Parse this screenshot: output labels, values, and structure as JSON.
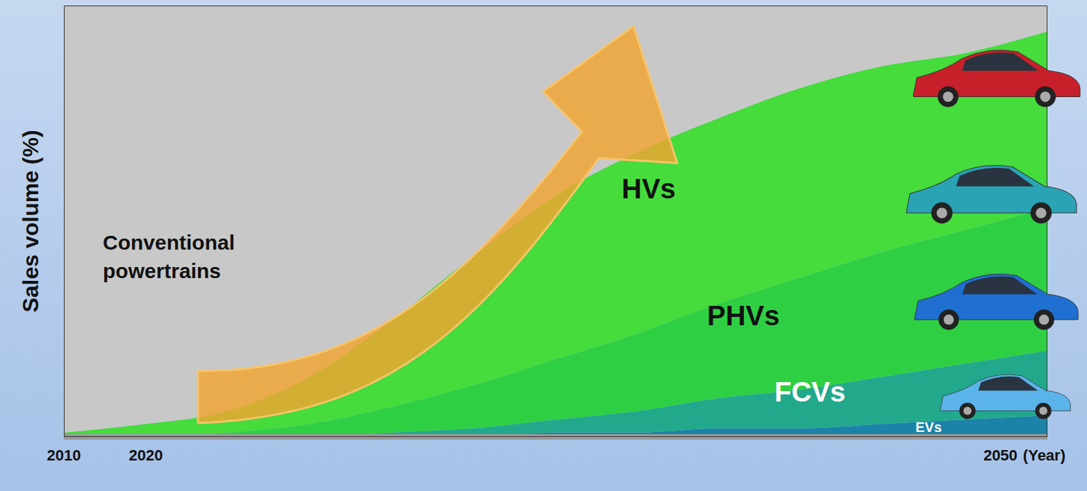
{
  "chart_data": {
    "type": "area",
    "stacked": true,
    "y_label": "Sales volume (%)",
    "x_label": "(Year)",
    "categories": [
      "2010",
      "2020",
      null,
      null,
      null,
      null,
      null,
      null,
      null,
      null,
      null,
      null,
      "2050"
    ],
    "ylim": [
      0,
      100
    ],
    "grid": false,
    "tick_labels": "x",
    "series": [
      {
        "name": "EVs",
        "color": "#1b83a8",
        "values": [
          0,
          0,
          0,
          0,
          0,
          0,
          1,
          1,
          2,
          2,
          3,
          4,
          5
        ]
      },
      {
        "name": "FCVs",
        "color": "#22a98c",
        "values": [
          0,
          0,
          0,
          0,
          1,
          2,
          3,
          5,
          7,
          9,
          11,
          13,
          15
        ]
      },
      {
        "name": "PHVs",
        "color": "#2fcf44",
        "values": [
          0,
          0,
          1,
          3,
          6,
          10,
          14,
          18,
          22,
          26,
          29,
          31,
          33
        ]
      },
      {
        "name": "HVs",
        "color": "#45dc3c",
        "values": [
          1,
          3,
          5,
          11,
          20,
          30,
          38,
          42,
          43,
          44,
          43,
          41,
          41
        ]
      },
      {
        "name": "Conventional powertrains",
        "color": "#c8c8c8",
        "values": [
          99,
          97,
          94,
          86,
          73,
          58,
          44,
          34,
          26,
          19,
          14,
          11,
          6
        ]
      }
    ]
  }
}
